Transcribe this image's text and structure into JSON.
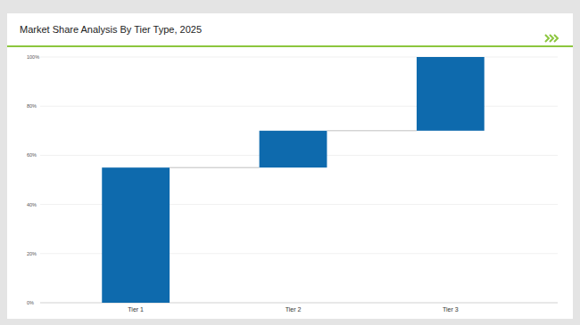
{
  "chart_data": {
    "type": "waterfall",
    "title": "Market Share Analysis By Tier Type, 2025",
    "categories": [
      "Tier 1",
      "Tier 2",
      "Tier 3"
    ],
    "values": [
      55,
      15,
      30
    ],
    "color": "#0e6aad",
    "ylim": [
      0,
      100
    ],
    "yticks": [
      {
        "value": 0,
        "label": "0%"
      },
      {
        "value": 20,
        "label": "20%"
      },
      {
        "value": 40,
        "label": "40%"
      },
      {
        "value": 60,
        "label": "60%"
      },
      {
        "value": 80,
        "label": "80%"
      },
      {
        "value": 100,
        "label": "100%"
      }
    ],
    "grid": true
  }
}
